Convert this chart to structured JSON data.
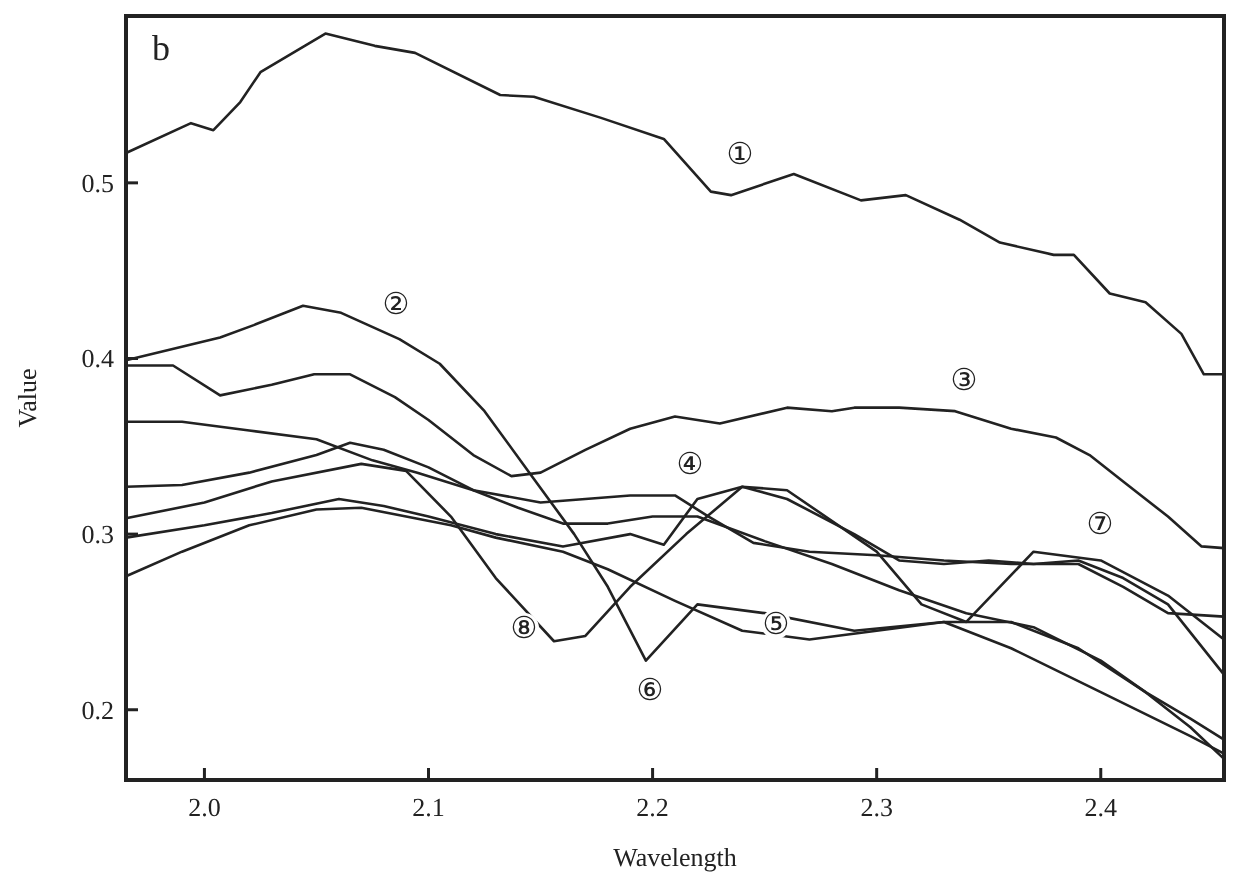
{
  "chart_data": {
    "type": "line",
    "title": "b",
    "xlabel": "Wavelength",
    "ylabel": "Value",
    "xlim": [
      1.965,
      2.455
    ],
    "ylim": [
      0.16,
      0.595
    ],
    "xticks": [
      {
        "value": 2.0,
        "label": "2.0"
      },
      {
        "value": 2.1,
        "label": "2.1"
      },
      {
        "value": 2.2,
        "label": "2.2"
      },
      {
        "value": 2.3,
        "label": "2.3"
      },
      {
        "value": 2.4,
        "label": "2.4"
      }
    ],
    "yticks": [
      {
        "value": 0.2,
        "label": "0.2"
      },
      {
        "value": 0.3,
        "label": "0.3"
      },
      {
        "value": 0.4,
        "label": "0.4"
      },
      {
        "value": 0.5,
        "label": "0.5"
      }
    ],
    "grid": false,
    "marker": "none",
    "line_style": "solid",
    "series": [
      {
        "color": "#222222",
        "x": [
          1.965,
          1.994,
          2.004,
          2.016,
          2.025,
          2.054,
          2.076,
          2.094,
          2.132,
          2.147,
          2.177,
          2.205,
          2.226,
          2.235,
          2.263,
          2.293,
          2.313,
          2.337,
          2.355,
          2.379,
          2.388,
          2.404,
          2.42,
          2.436,
          2.446,
          2.455
        ],
        "values": [
          0.517,
          0.534,
          0.53,
          0.546,
          0.563,
          0.585,
          0.578,
          0.574,
          0.55,
          0.549,
          0.537,
          0.525,
          0.495,
          0.493,
          0.505,
          0.49,
          0.493,
          0.479,
          0.466,
          0.459,
          0.459,
          0.437,
          0.432,
          0.414,
          0.391,
          0.391
        ]
      },
      {
        "color": "#222222",
        "x": [
          1.965,
          2.007,
          2.022,
          2.044,
          2.061,
          2.087,
          2.105,
          2.125,
          2.145,
          2.165,
          2.18,
          2.197,
          2.22,
          2.25,
          2.29,
          2.33,
          2.36,
          2.4,
          2.44,
          2.455
        ],
        "values": [
          0.399,
          0.412,
          0.419,
          0.43,
          0.426,
          0.411,
          0.397,
          0.37,
          0.335,
          0.3,
          0.27,
          0.228,
          0.26,
          0.255,
          0.245,
          0.25,
          0.235,
          0.21,
          0.185,
          0.175
        ]
      },
      {
        "color": "#222222",
        "x": [
          1.965,
          1.986,
          2.007,
          2.03,
          2.049,
          2.065,
          2.085,
          2.1,
          2.12,
          2.137,
          2.15,
          2.17,
          2.19,
          2.21,
          2.23,
          2.26,
          2.28,
          2.29,
          2.31,
          2.335,
          2.36,
          2.38,
          2.395,
          2.41,
          2.43,
          2.445,
          2.455
        ],
        "values": [
          0.396,
          0.396,
          0.379,
          0.385,
          0.391,
          0.391,
          0.378,
          0.365,
          0.345,
          0.333,
          0.335,
          0.348,
          0.36,
          0.367,
          0.363,
          0.372,
          0.37,
          0.372,
          0.372,
          0.37,
          0.36,
          0.355,
          0.345,
          0.33,
          0.31,
          0.293,
          0.292
        ]
      },
      {
        "color": "#222222",
        "x": [
          1.965,
          1.99,
          2.02,
          2.05,
          2.075,
          2.095,
          2.12,
          2.15,
          2.17,
          2.19,
          2.21,
          2.225,
          2.245,
          2.27,
          2.3,
          2.33,
          2.36,
          2.39,
          2.41,
          2.43,
          2.455
        ],
        "values": [
          0.364,
          0.364,
          0.359,
          0.354,
          0.342,
          0.335,
          0.325,
          0.318,
          0.32,
          0.322,
          0.322,
          0.31,
          0.295,
          0.29,
          0.288,
          0.285,
          0.283,
          0.283,
          0.27,
          0.255,
          0.253
        ]
      },
      {
        "color": "#222222",
        "x": [
          1.965,
          1.99,
          2.02,
          2.05,
          2.065,
          2.08,
          2.1,
          2.12,
          2.14,
          2.16,
          2.18,
          2.2,
          2.22,
          2.25,
          2.28,
          2.31,
          2.34,
          2.37,
          2.4,
          2.42,
          2.44,
          2.455
        ],
        "values": [
          0.327,
          0.328,
          0.335,
          0.345,
          0.352,
          0.348,
          0.338,
          0.325,
          0.315,
          0.306,
          0.306,
          0.31,
          0.31,
          0.296,
          0.283,
          0.268,
          0.255,
          0.247,
          0.228,
          0.21,
          0.195,
          0.183
        ]
      },
      {
        "color": "#222222",
        "x": [
          1.965,
          2.0,
          2.03,
          2.07,
          2.09,
          2.11,
          2.13,
          2.156,
          2.17,
          2.19,
          2.215,
          2.24,
          2.26,
          2.3,
          2.32,
          2.34,
          2.37,
          2.4,
          2.43,
          2.455
        ],
        "values": [
          0.309,
          0.318,
          0.33,
          0.34,
          0.336,
          0.31,
          0.275,
          0.239,
          0.242,
          0.27,
          0.3,
          0.327,
          0.325,
          0.29,
          0.26,
          0.25,
          0.29,
          0.285,
          0.265,
          0.24
        ]
      },
      {
        "color": "#222222",
        "x": [
          1.965,
          2.0,
          2.03,
          2.06,
          2.08,
          2.1,
          2.13,
          2.16,
          2.19,
          2.205,
          2.22,
          2.24,
          2.26,
          2.29,
          2.31,
          2.33,
          2.35,
          2.37,
          2.39,
          2.41,
          2.43,
          2.455
        ],
        "values": [
          0.298,
          0.305,
          0.312,
          0.32,
          0.316,
          0.31,
          0.3,
          0.293,
          0.3,
          0.294,
          0.32,
          0.327,
          0.32,
          0.3,
          0.285,
          0.283,
          0.285,
          0.283,
          0.285,
          0.275,
          0.26,
          0.22
        ]
      },
      {
        "color": "#222222",
        "x": [
          1.965,
          1.99,
          2.02,
          2.05,
          2.07,
          2.09,
          2.11,
          2.13,
          2.16,
          2.18,
          2.21,
          2.24,
          2.27,
          2.3,
          2.33,
          2.36,
          2.39,
          2.42,
          2.44,
          2.455
        ],
        "values": [
          0.276,
          0.29,
          0.305,
          0.314,
          0.315,
          0.31,
          0.305,
          0.298,
          0.29,
          0.28,
          0.262,
          0.245,
          0.24,
          0.245,
          0.25,
          0.25,
          0.235,
          0.21,
          0.19,
          0.172
        ]
      }
    ],
    "annotations": [
      "①",
      "②",
      "③",
      "④",
      "⑤",
      "⑥",
      "⑦",
      "⑧"
    ]
  }
}
